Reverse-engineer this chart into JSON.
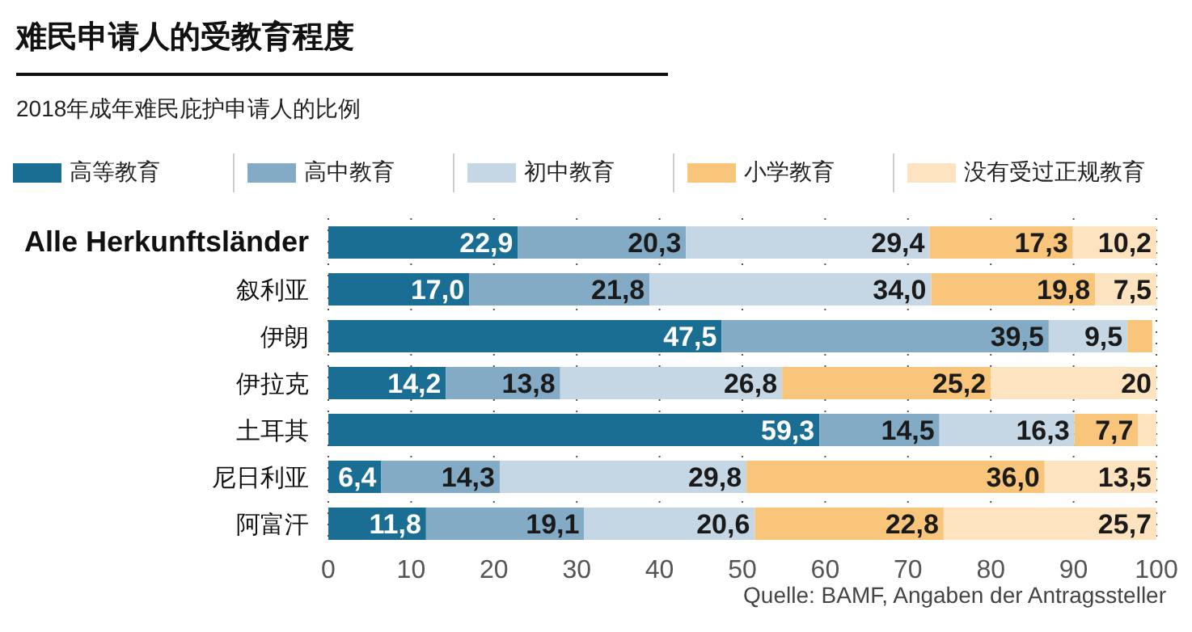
{
  "chart_data": {
    "type": "bar",
    "orientation": "horizontal",
    "stacked": true,
    "title": "难民申请人的受教育程度",
    "subtitle": "2018年成年难民庇护申请人的比例",
    "categories": [
      "Alle Herkunftsländer",
      "叙利亚",
      "伊朗",
      "伊拉克",
      "土耳其",
      "尼日利亚",
      "阿富汗"
    ],
    "series": [
      {
        "name": "高等教育",
        "color": "#1a6e93",
        "values": [
          22.9,
          17.0,
          47.5,
          14.2,
          59.3,
          6.4,
          11.8
        ],
        "value_labels": [
          "22,9",
          "17,0",
          "47,5",
          "14,2",
          "59,3",
          "6,4",
          "11,8"
        ]
      },
      {
        "name": "高中教育",
        "color": "#84abc6",
        "values": [
          20.3,
          21.8,
          39.5,
          13.8,
          14.5,
          14.3,
          19.1
        ],
        "value_labels": [
          "20,3",
          "21,8",
          "39,5",
          "13,8",
          "14,5",
          "14,3",
          "19,1"
        ]
      },
      {
        "name": "初中教育",
        "color": "#c5d6e4",
        "values": [
          29.4,
          34.0,
          9.5,
          26.8,
          16.3,
          29.8,
          20.6
        ],
        "value_labels": [
          "29,4",
          "34,0",
          "9,5",
          "26,8",
          "16,3",
          "29,8",
          "20,6"
        ]
      },
      {
        "name": "小学教育",
        "color": "#f8c57a",
        "values": [
          17.3,
          19.8,
          3.0,
          25.2,
          7.7,
          36.0,
          22.8
        ],
        "value_labels": [
          "17,3",
          "19,8",
          null,
          "25,2",
          "7,7",
          "36,0",
          "22,8"
        ]
      },
      {
        "name": "没有受过正规教育",
        "color": "#fde3c0",
        "values": [
          10.2,
          7.5,
          null,
          20,
          2.2,
          13.5,
          25.7
        ],
        "value_labels": [
          "10,2",
          "7,5",
          null,
          "20",
          null,
          "13,5",
          "25,7"
        ]
      }
    ],
    "xlim": [
      0,
      100
    ],
    "xticks": [
      0,
      10,
      20,
      30,
      40,
      50,
      60,
      70,
      80,
      90,
      100
    ],
    "grid": "x",
    "legend": "top left",
    "annotations": [
      "Quelle: BAMF, Angaben der Antragssteller"
    ]
  }
}
